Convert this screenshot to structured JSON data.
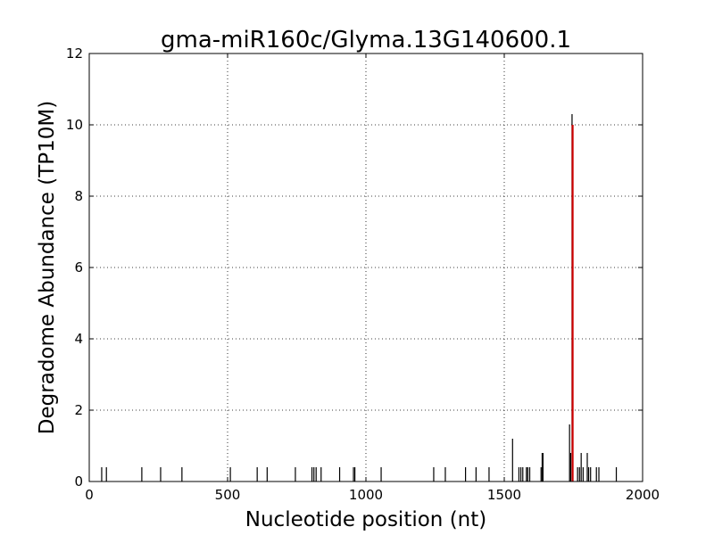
{
  "chart_data": {
    "type": "bar",
    "title": "gma-miR160c/Glyma.13G140600.1",
    "xlabel": "Nucleotide position (nt)",
    "ylabel": "Degradome Abundance (TP10M)",
    "xlim": [
      0,
      2000
    ],
    "ylim": [
      0,
      12
    ],
    "xticks": [
      "0",
      "500",
      "1000",
      "1500",
      "2000"
    ],
    "yticks": [
      "0",
      "2",
      "4",
      "6",
      "8",
      "10",
      "12"
    ],
    "grid": true,
    "colors": {
      "series": "#000000",
      "highlight": "#cc0000"
    },
    "series": [
      {
        "values": [
          [
            45,
            0.4
          ],
          [
            62,
            0.4
          ],
          [
            190,
            0.4
          ],
          [
            258,
            0.4
          ],
          [
            335,
            0.4
          ],
          [
            510,
            0.4
          ],
          [
            607,
            0.4
          ],
          [
            643,
            0.4
          ],
          [
            745,
            0.4
          ],
          [
            805,
            0.4
          ],
          [
            812,
            0.4
          ],
          [
            820,
            0.4
          ],
          [
            838,
            0.4
          ],
          [
            905,
            0.4
          ],
          [
            955,
            0.4
          ],
          [
            960,
            0.4
          ],
          [
            1055,
            0.4
          ],
          [
            1245,
            0.4
          ],
          [
            1287,
            0.4
          ],
          [
            1360,
            0.4
          ],
          [
            1398,
            0.4
          ],
          [
            1445,
            0.4
          ],
          [
            1530,
            1.2
          ],
          [
            1553,
            0.4
          ],
          [
            1560,
            0.4
          ],
          [
            1567,
            0.4
          ],
          [
            1580,
            0.4
          ],
          [
            1585,
            0.4
          ],
          [
            1592,
            0.4
          ],
          [
            1633,
            0.4
          ],
          [
            1637,
            0.8
          ],
          [
            1640,
            0.8
          ],
          [
            1736,
            1.6
          ],
          [
            1740,
            0.8
          ],
          [
            1745,
            10.3
          ],
          [
            1765,
            0.4
          ],
          [
            1772,
            0.4
          ],
          [
            1778,
            0.8
          ],
          [
            1785,
            0.4
          ],
          [
            1800,
            0.8
          ],
          [
            1805,
            0.4
          ],
          [
            1812,
            0.4
          ],
          [
            1833,
            0.4
          ],
          [
            1842,
            0.4
          ],
          [
            1905,
            0.4
          ]
        ]
      }
    ],
    "highlight": {
      "x": 1747,
      "y": 10
    }
  }
}
